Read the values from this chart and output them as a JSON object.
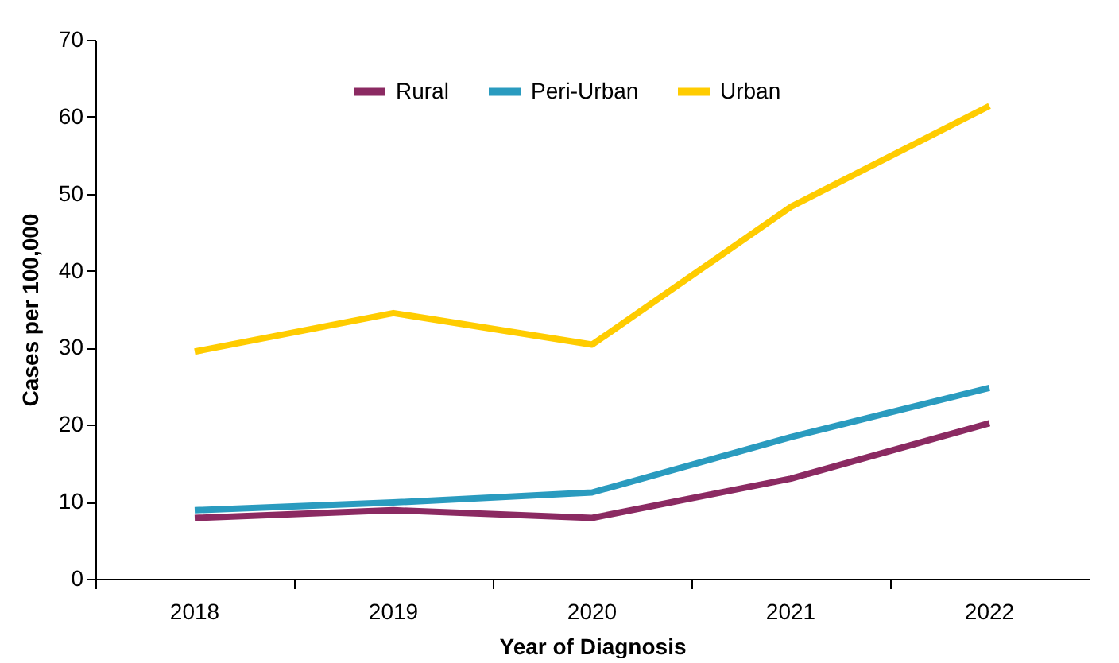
{
  "chart_data": {
    "type": "line",
    "xlabel": "Year of Diagnosis",
    "ylabel": "Cases per 100,000",
    "categories": [
      "2018",
      "2019",
      "2020",
      "2021",
      "2022"
    ],
    "series": [
      {
        "name": "Rural",
        "color": "#8b2a62",
        "values": [
          7.9,
          8.9,
          7.9,
          13,
          20.2
        ]
      },
      {
        "name": "Peri-Urban",
        "color": "#2a9bbf",
        "values": [
          8.9,
          9.9,
          11.2,
          18.4,
          24.8
        ]
      },
      {
        "name": "Urban",
        "color": "#ffcc00",
        "values": [
          29.5,
          34.5,
          30.4,
          48.3,
          61.4
        ]
      }
    ],
    "ylim": [
      0,
      70
    ],
    "yticks": [
      0,
      10,
      20,
      30,
      40,
      50,
      60,
      70
    ],
    "grid": false,
    "legend": "top",
    "marker": "none",
    "line_style": "solid"
  }
}
